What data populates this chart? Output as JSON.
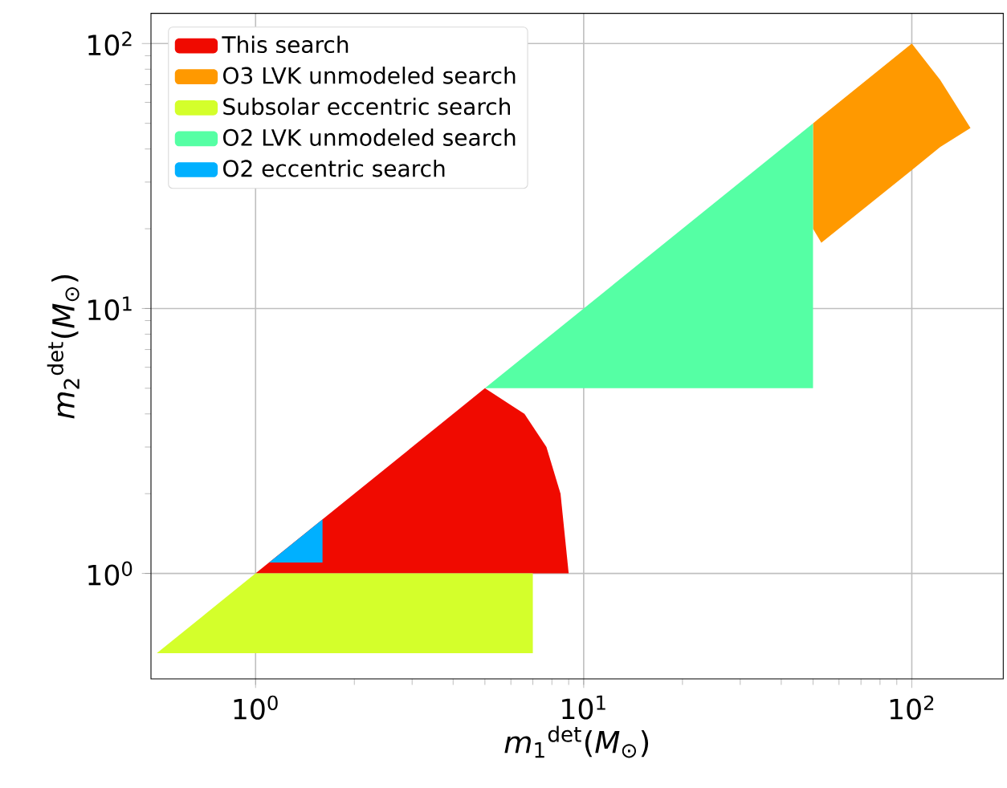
{
  "chart_data": {
    "type": "area",
    "xlabel": "*m*$_{1}$$^{det}$(*M*$_{⊙}$)",
    "ylabel": "*m*$_{2}$$^{det}$(*M*$_{⊙}$)",
    "log": "xy",
    "grid": true,
    "legend": "top left",
    "xlim": [
      0.48,
      190
    ],
    "ylim": [
      0.4,
      130
    ],
    "xticks": [
      {
        "value": 1,
        "label": "10$^{0}$"
      },
      {
        "value": 10,
        "label": "10$^{1}$"
      },
      {
        "value": 100,
        "label": "10$^{2}$"
      }
    ],
    "yticks": [
      {
        "value": 1,
        "label": "10$^{0}$"
      },
      {
        "value": 10,
        "label": "10$^{1}$"
      },
      {
        "value": 100,
        "label": "10$^{2}$"
      }
    ],
    "series": [
      {
        "name": "This search",
        "color": "#f00a00",
        "x": [
          1,
          5,
          6.6,
          7.7,
          8.5,
          9
        ],
        "values": [
          null,
          null,
          null,
          null,
          null,
          null
        ],
        "upper": [
          1,
          5,
          4,
          3,
          2,
          1
        ],
        "lower": [
          1,
          1,
          1,
          1,
          1,
          1
        ]
      },
      {
        "name": "O3 LVK unmodeled search",
        "color": "#ff9900",
        "x": [
          50,
          53,
          100,
          122,
          151
        ],
        "values": [
          null,
          null,
          null,
          null,
          null
        ],
        "upper": [
          50,
          53,
          100,
          73,
          48
        ],
        "lower": [
          20,
          17.7,
          33.3,
          40.7,
          48
        ]
      },
      {
        "name": "Subsolar eccentric search",
        "color": "#d4ff2b",
        "x": [
          0.5,
          1,
          7
        ],
        "values": [
          null,
          null,
          null
        ],
        "upper": [
          0.5,
          1,
          1
        ],
        "lower": [
          0.5,
          0.5,
          0.5
        ]
      },
      {
        "name": "O2 LVK unmodeled search",
        "color": "#55ffa4",
        "x": [
          5,
          50
        ],
        "values": [
          null,
          null
        ],
        "upper": [
          5,
          50
        ],
        "lower": [
          5,
          5
        ]
      },
      {
        "name": "O2 eccentric search",
        "color": "#00b0ff",
        "x": [
          1.1,
          1.6
        ],
        "values": [
          null,
          null
        ],
        "upper": [
          1.1,
          1.6
        ],
        "lower": [
          1.1,
          1.1
        ]
      }
    ]
  }
}
